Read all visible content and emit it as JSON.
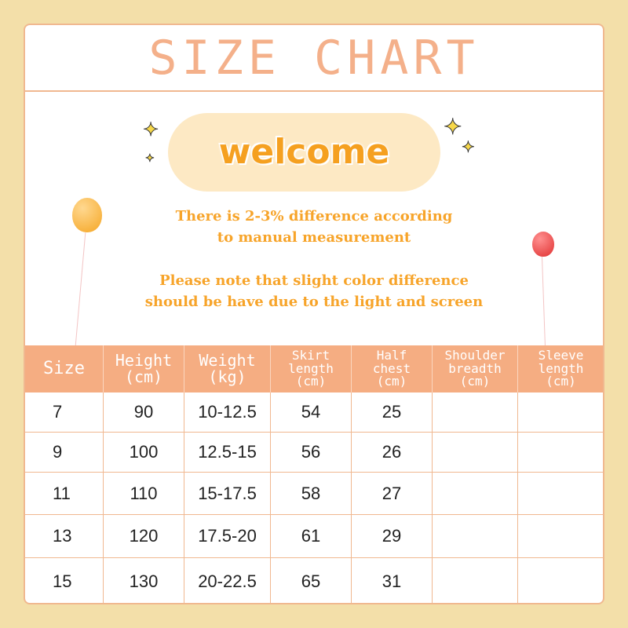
{
  "title": "SIZE CHART",
  "welcome": "welcome",
  "notes": [
    "There is 2-3% difference according",
    "to manual measurement",
    "Please note that slight color difference",
    "should be have due to the light and screen"
  ],
  "colors": {
    "header": "#f5ad82",
    "title": "#f4b08a",
    "note": "#f7a42a",
    "border": "#f0b890",
    "background": "#f3dfa9"
  },
  "icons": [
    "sparkle-icon",
    "balloon-icon"
  ],
  "table": {
    "headers": [
      [
        "Size"
      ],
      [
        "Height",
        "(cm)"
      ],
      [
        "Weight",
        "(kg)"
      ],
      [
        "Skirt",
        "length",
        "(cm)"
      ],
      [
        "Half",
        "chest",
        "(cm)"
      ],
      [
        "Shoulder",
        "breadth",
        "(cm)"
      ],
      [
        "Sleeve",
        "length",
        "(cm)"
      ]
    ],
    "rows": [
      [
        "7",
        "90",
        "10-12.5",
        "54",
        "25",
        "",
        ""
      ],
      [
        "9",
        "100",
        "12.5-15",
        "56",
        "26",
        "",
        ""
      ],
      [
        "11",
        "110",
        "15-17.5",
        "58",
        "27",
        "",
        ""
      ],
      [
        "13",
        "120",
        "17.5-20",
        "61",
        "29",
        "",
        ""
      ],
      [
        "15",
        "130",
        "20-22.5",
        "65",
        "31",
        "",
        ""
      ]
    ]
  }
}
